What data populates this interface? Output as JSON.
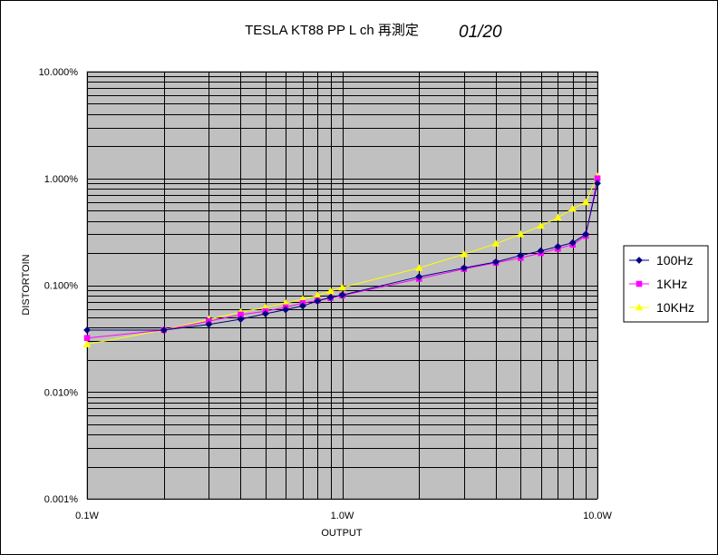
{
  "chart_data": {
    "type": "line",
    "title": "TESLA KT88 PP L ch 再測定",
    "title_date": "01/20",
    "xlabel": "OUTPUT",
    "ylabel": "DISTORTOIN",
    "xscale": "log",
    "yscale": "log",
    "xlim": [
      0.1,
      10
    ],
    "ylim": [
      0.001,
      10
    ],
    "x_tick_labels": [
      "0.1W",
      "1.0W",
      "10.0W"
    ],
    "x_ticks": [
      0.1,
      1,
      10
    ],
    "y_tick_labels": [
      "0.001%",
      "0.010%",
      "0.100%",
      "1.000%",
      "10.000%"
    ],
    "y_ticks": [
      0.001,
      0.01,
      0.1,
      1,
      10
    ],
    "grid": true,
    "legend_position": "right",
    "plot_background": "#c0c0c0",
    "series": [
      {
        "name": "100Hz",
        "color": "#000080",
        "marker": "diamond",
        "x": [
          0.1,
          0.2,
          0.3,
          0.4,
          0.5,
          0.6,
          0.7,
          0.8,
          0.9,
          1.0,
          2.0,
          3.0,
          4.0,
          5.0,
          6.0,
          7.0,
          8.0,
          9.0,
          10.0
        ],
        "y": [
          0.038,
          0.038,
          0.043,
          0.048,
          0.054,
          0.059,
          0.064,
          0.071,
          0.077,
          0.081,
          0.12,
          0.145,
          0.165,
          0.19,
          0.21,
          0.23,
          0.25,
          0.3,
          0.9
        ]
      },
      {
        "name": "1KHz",
        "color": "#ff00ff",
        "marker": "square",
        "x": [
          0.1,
          0.2,
          0.3,
          0.4,
          0.5,
          0.6,
          0.7,
          0.8,
          0.9,
          1.0,
          2.0,
          3.0,
          4.0,
          5.0,
          6.0,
          7.0,
          8.0,
          9.0,
          10.0
        ],
        "y": [
          0.032,
          0.038,
          0.046,
          0.053,
          0.057,
          0.062,
          0.068,
          0.072,
          0.076,
          0.08,
          0.115,
          0.142,
          0.162,
          0.18,
          0.2,
          0.22,
          0.24,
          0.29,
          1.0
        ]
      },
      {
        "name": "10KHz",
        "color": "#ffff00",
        "marker": "triangle",
        "x": [
          0.1,
          0.2,
          0.3,
          0.4,
          0.5,
          0.6,
          0.7,
          0.8,
          0.9,
          1.0,
          2.0,
          3.0,
          4.0,
          5.0,
          6.0,
          7.0,
          8.0,
          9.0,
          10.0
        ],
        "y": [
          0.028,
          0.038,
          0.048,
          0.056,
          0.062,
          0.068,
          0.074,
          0.08,
          0.088,
          0.095,
          0.145,
          0.195,
          0.245,
          0.3,
          0.36,
          0.43,
          0.52,
          0.6,
          1.05
        ]
      }
    ]
  }
}
